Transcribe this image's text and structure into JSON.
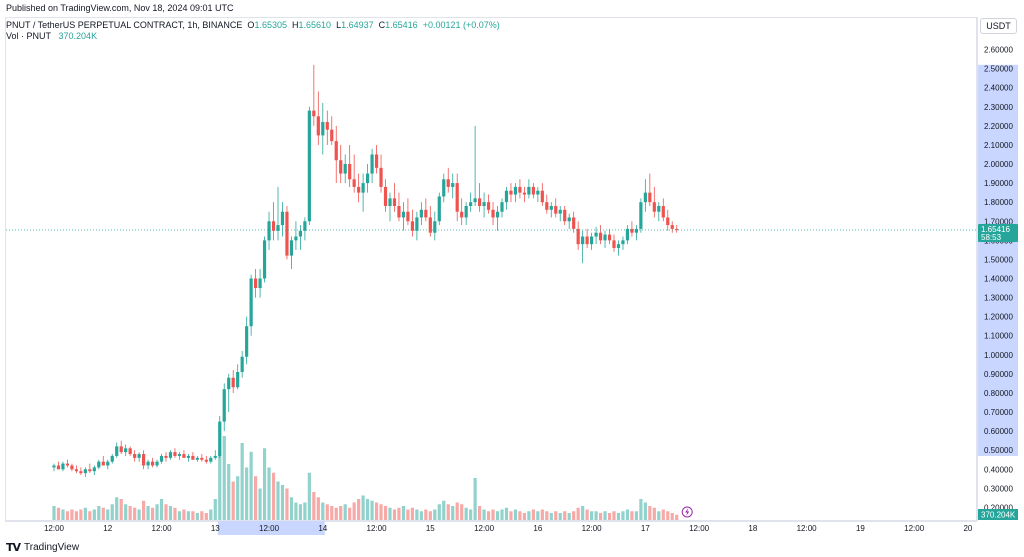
{
  "header": {
    "published": "Published on TradingView.com, Nov 18, 2024 09:01 UTC"
  },
  "legend": {
    "symbol": "PNUT / TetherUS PERPETUAL CONTRACT, 1h, BINANCE",
    "o_label": "O",
    "o_value": "1.65305",
    "h_label": "H",
    "h_value": "1.65610",
    "l_label": "L",
    "l_value": "1.64937",
    "c_label": "C",
    "c_value": "1.65416",
    "change": "+0.00121 (+0.07%)",
    "vol_label": "Vol · PNUT",
    "vol_value": "370.204K"
  },
  "price_axis": {
    "currency": "USDT",
    "current_price": "1.65416",
    "countdown": "58:53",
    "volume_badge": "370.204K"
  },
  "footer": {
    "brand": "TradingView"
  },
  "colors": {
    "up": "#26a69a",
    "down": "#ef5350",
    "up_volume": "#92d2cc",
    "down_volume": "#f7a9a7",
    "selection": "#c9d6ff",
    "price_line": "#26a69a"
  },
  "chart_data": {
    "type": "candlestick",
    "y_ticks": [
      "2.60000",
      "2.50000",
      "2.40000",
      "2.30000",
      "2.20000",
      "2.10000",
      "2.00000",
      "1.90000",
      "1.80000",
      "1.70000",
      "1.60000",
      "1.50000",
      "1.40000",
      "1.30000",
      "1.20000",
      "1.10000",
      "1.00000",
      "0.90000",
      "0.80000",
      "0.70000",
      "0.60000",
      "0.50000",
      "0.40000",
      "0.30000",
      "0.20000"
    ],
    "ylim": [
      0.15,
      2.65
    ],
    "highlight_range": [
      0.47,
      2.52
    ],
    "x_ticks": [
      {
        "label": "12:00",
        "t": 0
      },
      {
        "label": "12",
        "t": 12
      },
      {
        "label": "12:00",
        "t": 24
      },
      {
        "label": "13",
        "t": 36
      },
      {
        "label": "12:00",
        "t": 48
      },
      {
        "label": "14",
        "t": 60
      },
      {
        "label": "12:00",
        "t": 72
      },
      {
        "label": "15",
        "t": 84
      },
      {
        "label": "12:00",
        "t": 96
      },
      {
        "label": "16",
        "t": 108
      },
      {
        "label": "12:00",
        "t": 120
      },
      {
        "label": "17",
        "t": 132
      },
      {
        "label": "12:00",
        "t": 144
      },
      {
        "label": "18",
        "t": 156
      },
      {
        "label": "12:00",
        "t": 168
      },
      {
        "label": "19",
        "t": 180
      },
      {
        "label": "12:00",
        "t": 192
      },
      {
        "label": "20",
        "t": 204
      }
    ],
    "highlight_time": [
      37,
      60
    ],
    "current_price": 1.65416,
    "candles": [
      [
        0.41,
        0.43,
        0.39,
        0.42,
        0.08
      ],
      [
        0.42,
        0.44,
        0.4,
        0.4,
        0.07
      ],
      [
        0.4,
        0.44,
        0.39,
        0.43,
        0.06
      ],
      [
        0.43,
        0.45,
        0.41,
        0.42,
        0.05
      ],
      [
        0.42,
        0.43,
        0.39,
        0.4,
        0.06
      ],
      [
        0.4,
        0.42,
        0.38,
        0.39,
        0.05
      ],
      [
        0.39,
        0.41,
        0.37,
        0.38,
        0.06
      ],
      [
        0.38,
        0.41,
        0.36,
        0.4,
        0.07
      ],
      [
        0.4,
        0.43,
        0.38,
        0.39,
        0.05
      ],
      [
        0.39,
        0.42,
        0.37,
        0.41,
        0.06
      ],
      [
        0.41,
        0.45,
        0.4,
        0.44,
        0.08
      ],
      [
        0.44,
        0.47,
        0.42,
        0.42,
        0.07
      ],
      [
        0.42,
        0.45,
        0.4,
        0.44,
        0.06
      ],
      [
        0.44,
        0.48,
        0.43,
        0.47,
        0.09
      ],
      [
        0.47,
        0.54,
        0.46,
        0.52,
        0.13
      ],
      [
        0.52,
        0.55,
        0.48,
        0.49,
        0.12
      ],
      [
        0.49,
        0.53,
        0.47,
        0.51,
        0.09
      ],
      [
        0.51,
        0.52,
        0.47,
        0.48,
        0.08
      ],
      [
        0.48,
        0.5,
        0.44,
        0.46,
        0.07
      ],
      [
        0.46,
        0.49,
        0.44,
        0.48,
        0.06
      ],
      [
        0.48,
        0.5,
        0.4,
        0.42,
        0.11
      ],
      [
        0.42,
        0.45,
        0.4,
        0.44,
        0.08
      ],
      [
        0.44,
        0.46,
        0.41,
        0.42,
        0.07
      ],
      [
        0.42,
        0.45,
        0.41,
        0.44,
        0.09
      ],
      [
        0.44,
        0.48,
        0.43,
        0.47,
        0.12
      ],
      [
        0.47,
        0.49,
        0.44,
        0.46,
        0.09
      ],
      [
        0.46,
        0.5,
        0.45,
        0.49,
        0.08
      ],
      [
        0.49,
        0.51,
        0.46,
        0.47,
        0.07
      ],
      [
        0.47,
        0.49,
        0.45,
        0.48,
        0.05
      ],
      [
        0.48,
        0.5,
        0.46,
        0.46,
        0.06
      ],
      [
        0.46,
        0.48,
        0.44,
        0.47,
        0.05
      ],
      [
        0.47,
        0.49,
        0.45,
        0.45,
        0.05
      ],
      [
        0.45,
        0.47,
        0.44,
        0.46,
        0.04
      ],
      [
        0.46,
        0.48,
        0.44,
        0.45,
        0.05
      ],
      [
        0.45,
        0.47,
        0.43,
        0.44,
        0.04
      ],
      [
        0.44,
        0.47,
        0.43,
        0.46,
        0.06
      ],
      [
        0.46,
        0.5,
        0.45,
        0.47,
        0.12
      ],
      [
        0.47,
        0.68,
        0.46,
        0.65,
        0.38
      ],
      [
        0.65,
        0.85,
        0.6,
        0.82,
        0.48
      ],
      [
        0.82,
        0.9,
        0.7,
        0.88,
        0.32
      ],
      [
        0.88,
        0.92,
        0.8,
        0.83,
        0.22
      ],
      [
        0.83,
        0.95,
        0.82,
        0.91,
        0.25
      ],
      [
        0.91,
        1.02,
        0.88,
        0.99,
        0.44
      ],
      [
        0.99,
        1.2,
        0.95,
        1.15,
        0.3
      ],
      [
        1.15,
        1.42,
        1.1,
        1.4,
        0.39
      ],
      [
        1.4,
        1.45,
        1.3,
        1.35,
        0.25
      ],
      [
        1.35,
        1.45,
        1.3,
        1.4,
        0.18
      ],
      [
        1.4,
        1.62,
        1.38,
        1.6,
        0.41
      ],
      [
        1.6,
        1.75,
        1.55,
        1.7,
        0.3
      ],
      [
        1.7,
        1.8,
        1.6,
        1.65,
        0.27
      ],
      [
        1.65,
        1.88,
        1.6,
        1.68,
        0.22
      ],
      [
        1.68,
        1.8,
        1.62,
        1.75,
        0.2
      ],
      [
        1.75,
        1.78,
        1.5,
        1.52,
        0.18
      ],
      [
        1.52,
        1.62,
        1.45,
        1.6,
        0.13
      ],
      [
        1.6,
        1.7,
        1.55,
        1.62,
        0.1
      ],
      [
        1.62,
        1.68,
        1.55,
        1.65,
        0.09
      ],
      [
        1.65,
        1.72,
        1.6,
        1.7,
        0.1
      ],
      [
        1.7,
        2.3,
        1.68,
        2.28,
        0.27
      ],
      [
        2.28,
        2.52,
        2.2,
        2.25,
        0.16
      ],
      [
        2.25,
        2.38,
        2.1,
        2.15,
        0.13
      ],
      [
        2.15,
        2.32,
        2.05,
        2.22,
        0.1
      ],
      [
        2.22,
        2.28,
        2.1,
        2.18,
        0.09
      ],
      [
        2.18,
        2.25,
        2.1,
        2.12,
        0.08
      ],
      [
        2.12,
        2.2,
        1.9,
        2.02,
        0.07
      ],
      [
        2.02,
        2.1,
        1.9,
        1.95,
        0.08
      ],
      [
        1.95,
        2.05,
        1.9,
        2.0,
        0.09
      ],
      [
        2.0,
        2.1,
        1.88,
        1.92,
        0.07
      ],
      [
        1.92,
        2.05,
        1.85,
        1.88,
        0.1
      ],
      [
        1.88,
        1.95,
        1.8,
        1.85,
        0.12
      ],
      [
        1.85,
        1.95,
        1.75,
        1.9,
        0.14
      ],
      [
        1.9,
        2.0,
        1.85,
        1.95,
        0.12
      ],
      [
        1.95,
        2.08,
        1.9,
        2.05,
        0.11
      ],
      [
        2.05,
        2.1,
        1.95,
        1.98,
        0.1
      ],
      [
        1.98,
        2.05,
        1.85,
        1.88,
        0.09
      ],
      [
        1.88,
        1.92,
        1.75,
        1.78,
        0.08
      ],
      [
        1.78,
        1.85,
        1.7,
        1.82,
        0.07
      ],
      [
        1.82,
        1.9,
        1.75,
        1.78,
        0.06
      ],
      [
        1.78,
        1.85,
        1.7,
        1.72,
        0.07
      ],
      [
        1.72,
        1.8,
        1.65,
        1.75,
        0.08
      ],
      [
        1.75,
        1.82,
        1.68,
        1.7,
        0.06
      ],
      [
        1.7,
        1.76,
        1.62,
        1.65,
        0.07
      ],
      [
        1.65,
        1.75,
        1.6,
        1.72,
        0.06
      ],
      [
        1.72,
        1.8,
        1.68,
        1.76,
        0.05
      ],
      [
        1.76,
        1.82,
        1.7,
        1.72,
        0.06
      ],
      [
        1.72,
        1.78,
        1.62,
        1.64,
        0.05
      ],
      [
        1.64,
        1.75,
        1.6,
        1.7,
        0.06
      ],
      [
        1.7,
        1.85,
        1.68,
        1.83,
        0.09
      ],
      [
        1.83,
        1.95,
        1.8,
        1.92,
        0.11
      ],
      [
        1.92,
        1.98,
        1.85,
        1.88,
        0.09
      ],
      [
        1.88,
        1.95,
        1.82,
        1.9,
        0.08
      ],
      [
        1.9,
        1.95,
        1.7,
        1.75,
        0.1
      ],
      [
        1.75,
        1.82,
        1.68,
        1.72,
        0.09
      ],
      [
        1.72,
        1.8,
        1.68,
        1.78,
        0.07
      ],
      [
        1.78,
        1.85,
        1.75,
        1.8,
        0.06
      ],
      [
        1.8,
        2.2,
        1.78,
        1.82,
        0.24
      ],
      [
        1.82,
        1.9,
        1.75,
        1.78,
        0.08
      ],
      [
        1.78,
        1.85,
        1.72,
        1.8,
        0.06
      ],
      [
        1.8,
        1.84,
        1.74,
        1.76,
        0.05
      ],
      [
        1.76,
        1.8,
        1.68,
        1.72,
        0.06
      ],
      [
        1.72,
        1.78,
        1.65,
        1.75,
        0.05
      ],
      [
        1.75,
        1.82,
        1.72,
        1.8,
        0.06
      ],
      [
        1.8,
        1.88,
        1.76,
        1.86,
        0.07
      ],
      [
        1.86,
        1.9,
        1.8,
        1.84,
        0.05
      ],
      [
        1.84,
        1.9,
        1.8,
        1.88,
        0.06
      ],
      [
        1.88,
        1.92,
        1.82,
        1.85,
        0.05
      ],
      [
        1.85,
        1.88,
        1.8,
        1.84,
        0.04
      ],
      [
        1.84,
        1.92,
        1.82,
        1.88,
        0.05
      ],
      [
        1.88,
        1.9,
        1.82,
        1.84,
        0.06
      ],
      [
        1.84,
        1.88,
        1.8,
        1.86,
        0.05
      ],
      [
        1.86,
        1.9,
        1.78,
        1.8,
        0.06
      ],
      [
        1.8,
        1.84,
        1.74,
        1.76,
        0.05
      ],
      [
        1.76,
        1.8,
        1.72,
        1.78,
        0.04
      ],
      [
        1.78,
        1.82,
        1.72,
        1.74,
        0.05
      ],
      [
        1.74,
        1.78,
        1.7,
        1.76,
        0.04
      ],
      [
        1.76,
        1.78,
        1.68,
        1.7,
        0.05
      ],
      [
        1.7,
        1.74,
        1.66,
        1.72,
        0.04
      ],
      [
        1.72,
        1.75,
        1.64,
        1.66,
        0.05
      ],
      [
        1.66,
        1.7,
        1.55,
        1.58,
        0.07
      ],
      [
        1.58,
        1.65,
        1.48,
        1.62,
        0.08
      ],
      [
        1.62,
        1.66,
        1.56,
        1.58,
        0.06
      ],
      [
        1.58,
        1.64,
        1.55,
        1.62,
        0.05
      ],
      [
        1.62,
        1.67,
        1.58,
        1.64,
        0.05
      ],
      [
        1.64,
        1.68,
        1.58,
        1.6,
        0.04
      ],
      [
        1.6,
        1.65,
        1.56,
        1.63,
        0.05
      ],
      [
        1.63,
        1.66,
        1.58,
        1.6,
        0.04
      ],
      [
        1.6,
        1.63,
        1.54,
        1.56,
        0.05
      ],
      [
        1.56,
        1.6,
        1.52,
        1.58,
        0.04
      ],
      [
        1.58,
        1.62,
        1.55,
        1.6,
        0.05
      ],
      [
        1.6,
        1.68,
        1.58,
        1.66,
        0.06
      ],
      [
        1.66,
        1.7,
        1.62,
        1.64,
        0.05
      ],
      [
        1.64,
        1.68,
        1.6,
        1.66,
        0.05
      ],
      [
        1.66,
        1.82,
        1.64,
        1.8,
        0.12
      ],
      [
        1.8,
        1.92,
        1.75,
        1.85,
        0.1
      ],
      [
        1.85,
        1.95,
        1.78,
        1.8,
        0.08
      ],
      [
        1.8,
        1.88,
        1.72,
        1.75,
        0.07
      ],
      [
        1.75,
        1.8,
        1.7,
        1.78,
        0.05
      ],
      [
        1.78,
        1.82,
        1.7,
        1.72,
        0.06
      ],
      [
        1.72,
        1.76,
        1.65,
        1.68,
        0.05
      ],
      [
        1.68,
        1.7,
        1.64,
        1.66,
        0.04
      ],
      [
        1.66,
        1.68,
        1.64,
        1.65416,
        0.03
      ]
    ]
  }
}
